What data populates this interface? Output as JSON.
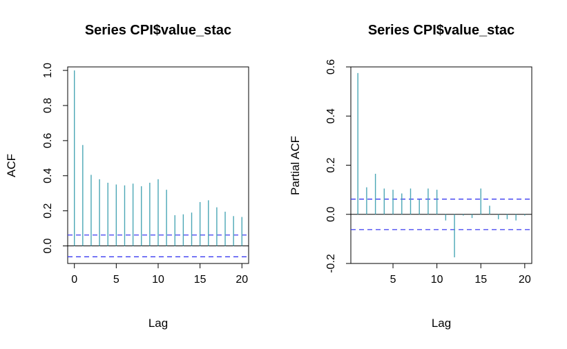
{
  "chart_data": [
    {
      "type": "bar",
      "title": "Series  CPI$value_stac",
      "xlabel": "Lag",
      "ylabel": "ACF",
      "x_ticks": [
        "0",
        "5",
        "10",
        "15",
        "20"
      ],
      "y_ticks": [
        "0.0",
        "0.2",
        "0.4",
        "0.6",
        "0.8",
        "1.0"
      ],
      "xlim": [
        -0.8,
        20.8
      ],
      "ylim": [
        -0.1,
        1.02
      ],
      "lags": [
        0,
        1,
        2,
        3,
        4,
        5,
        6,
        7,
        8,
        9,
        10,
        11,
        12,
        13,
        14,
        15,
        16,
        17,
        18,
        19,
        20
      ],
      "values": [
        1.0,
        0.575,
        0.405,
        0.38,
        0.36,
        0.35,
        0.345,
        0.355,
        0.34,
        0.36,
        0.38,
        0.32,
        0.175,
        0.18,
        0.19,
        0.25,
        0.26,
        0.22,
        0.195,
        0.17,
        0.165
      ],
      "ci": 0.062,
      "colors": {
        "bars": "#4aa6b5",
        "ci": "#3a3af0",
        "axis": "#000000"
      }
    },
    {
      "type": "bar",
      "title": "Series  CPI$value_stac",
      "xlabel": "Lag",
      "ylabel": "Partial ACF",
      "x_ticks": [
        "5",
        "10",
        "15",
        "20"
      ],
      "y_ticks": [
        "-0.2",
        "0.0",
        "0.2",
        "0.4",
        "0.6"
      ],
      "xlim": [
        0.2,
        20.8
      ],
      "ylim": [
        -0.2,
        0.6
      ],
      "lags": [
        1,
        2,
        3,
        4,
        5,
        6,
        7,
        8,
        9,
        10,
        11,
        12,
        13,
        14,
        15,
        16,
        17,
        18,
        19,
        20
      ],
      "values": [
        0.575,
        0.11,
        0.165,
        0.105,
        0.1,
        0.085,
        0.105,
        0.06,
        0.105,
        0.1,
        -0.025,
        -0.175,
        -0.005,
        -0.015,
        0.105,
        0.035,
        -0.02,
        -0.02,
        -0.025,
        -0.005
      ],
      "ci": 0.062,
      "colors": {
        "bars": "#4aa6b5",
        "ci": "#3a3af0",
        "axis": "#000000"
      }
    }
  ]
}
